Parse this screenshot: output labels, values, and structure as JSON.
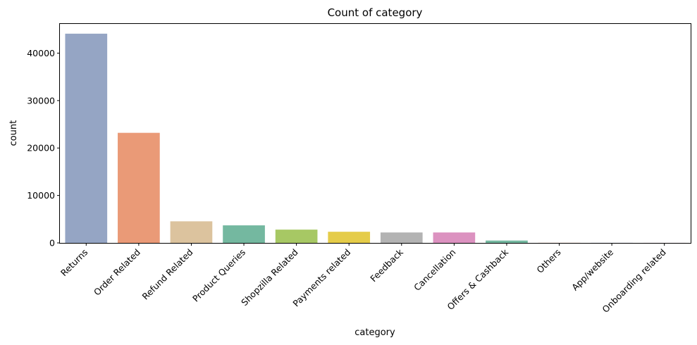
{
  "chart_data": {
    "type": "bar",
    "title": "Count of category",
    "xlabel": "category",
    "ylabel": "count",
    "ylim": [
      0,
      46300
    ],
    "yticks": [
      0,
      10000,
      20000,
      30000,
      40000
    ],
    "ytick_labels": [
      "0",
      "10000",
      "20000",
      "30000",
      "40000"
    ],
    "grid": false,
    "categories": [
      "Returns",
      "Order Related",
      "Refund Related",
      "Product Queries",
      "Shopzilla Related",
      "Payments related",
      "Feedback",
      "Cancellation",
      "Offers & Cashback",
      "Others",
      "App/website",
      "Onboarding related"
    ],
    "values": [
      44100,
      23200,
      4550,
      3700,
      2800,
      2350,
      2200,
      2200,
      500,
      20,
      15,
      10
    ],
    "colors": [
      "#95a5c4",
      "#ea9a77",
      "#dcc39e",
      "#74b8a0",
      "#a7c864",
      "#e5cc49",
      "#b3b3b3",
      "#dc92c0",
      "#74b8a0",
      "#ea9a77",
      "#95a5c4",
      "#dc92c0"
    ]
  }
}
